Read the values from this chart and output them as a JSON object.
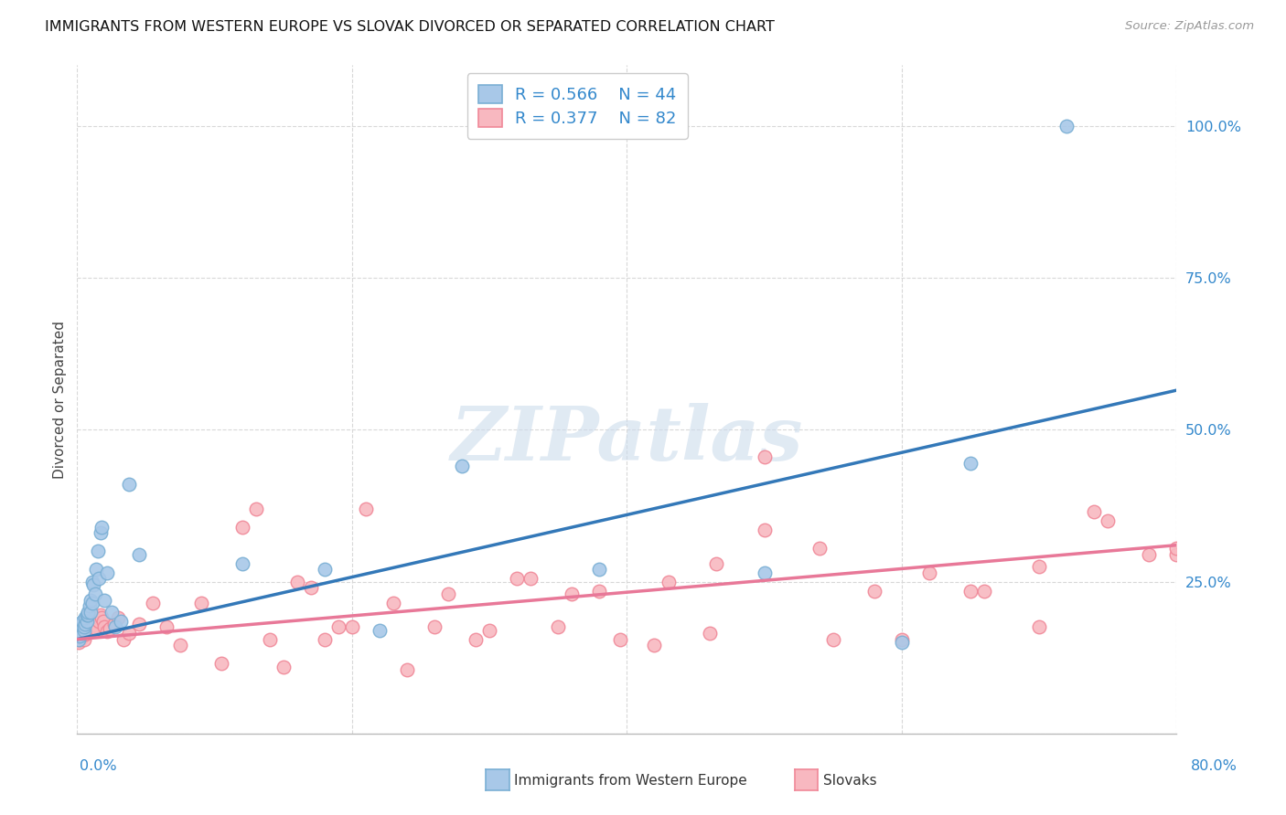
{
  "title": "IMMIGRANTS FROM WESTERN EUROPE VS SLOVAK DIVORCED OR SEPARATED CORRELATION CHART",
  "source": "Source: ZipAtlas.com",
  "ylabel": "Divorced or Separated",
  "legend_blue_r": "R = 0.566",
  "legend_blue_n": "N = 44",
  "legend_pink_r": "R = 0.377",
  "legend_pink_n": "N = 82",
  "blue_scatter_color": "#a8c8e8",
  "blue_edge_color": "#7aafd4",
  "pink_scatter_color": "#f8b8c0",
  "pink_edge_color": "#f08898",
  "line_blue": "#3378b8",
  "line_pink": "#e87898",
  "blue_scatter_x": [
    0.001,
    0.001,
    0.002,
    0.002,
    0.003,
    0.003,
    0.004,
    0.004,
    0.005,
    0.005,
    0.006,
    0.006,
    0.007,
    0.007,
    0.008,
    0.008,
    0.009,
    0.01,
    0.01,
    0.011,
    0.011,
    0.012,
    0.013,
    0.014,
    0.015,
    0.016,
    0.017,
    0.018,
    0.02,
    0.022,
    0.025,
    0.028,
    0.032,
    0.038,
    0.045,
    0.12,
    0.18,
    0.22,
    0.28,
    0.38,
    0.5,
    0.6,
    0.65,
    0.72
  ],
  "blue_scatter_y": [
    0.155,
    0.165,
    0.16,
    0.17,
    0.165,
    0.18,
    0.175,
    0.185,
    0.17,
    0.175,
    0.18,
    0.19,
    0.185,
    0.195,
    0.195,
    0.2,
    0.21,
    0.2,
    0.22,
    0.215,
    0.25,
    0.245,
    0.23,
    0.27,
    0.3,
    0.255,
    0.33,
    0.34,
    0.22,
    0.265,
    0.2,
    0.175,
    0.185,
    0.41,
    0.295,
    0.28,
    0.27,
    0.17,
    0.44,
    0.27,
    0.265,
    0.15,
    0.445,
    1.0
  ],
  "pink_scatter_x": [
    0.001,
    0.001,
    0.002,
    0.002,
    0.003,
    0.003,
    0.004,
    0.004,
    0.005,
    0.005,
    0.006,
    0.006,
    0.007,
    0.007,
    0.008,
    0.008,
    0.009,
    0.01,
    0.011,
    0.012,
    0.013,
    0.014,
    0.015,
    0.016,
    0.017,
    0.018,
    0.019,
    0.02,
    0.022,
    0.024,
    0.027,
    0.03,
    0.034,
    0.038,
    0.045,
    0.055,
    0.065,
    0.075,
    0.09,
    0.105,
    0.12,
    0.14,
    0.16,
    0.18,
    0.2,
    0.23,
    0.26,
    0.29,
    0.32,
    0.35,
    0.38,
    0.42,
    0.46,
    0.5,
    0.55,
    0.6,
    0.65,
    0.7,
    0.75,
    0.8,
    0.13,
    0.15,
    0.17,
    0.19,
    0.21,
    0.24,
    0.27,
    0.3,
    0.33,
    0.36,
    0.395,
    0.43,
    0.465,
    0.5,
    0.54,
    0.58,
    0.62,
    0.66,
    0.7,
    0.74,
    0.78,
    0.8
  ],
  "pink_scatter_y": [
    0.15,
    0.165,
    0.155,
    0.16,
    0.158,
    0.165,
    0.16,
    0.17,
    0.155,
    0.165,
    0.163,
    0.172,
    0.168,
    0.175,
    0.172,
    0.178,
    0.175,
    0.17,
    0.18,
    0.185,
    0.178,
    0.172,
    0.19,
    0.185,
    0.195,
    0.19,
    0.185,
    0.175,
    0.168,
    0.172,
    0.18,
    0.19,
    0.155,
    0.165,
    0.18,
    0.215,
    0.175,
    0.145,
    0.215,
    0.115,
    0.34,
    0.155,
    0.25,
    0.155,
    0.175,
    0.215,
    0.175,
    0.155,
    0.255,
    0.175,
    0.235,
    0.145,
    0.165,
    0.455,
    0.155,
    0.155,
    0.235,
    0.175,
    0.35,
    0.295,
    0.37,
    0.11,
    0.24,
    0.175,
    0.37,
    0.105,
    0.23,
    0.17,
    0.255,
    0.23,
    0.155,
    0.25,
    0.28,
    0.335,
    0.305,
    0.235,
    0.265,
    0.235,
    0.275,
    0.365,
    0.295,
    0.305
  ],
  "xmin": 0.0,
  "xmax": 0.8,
  "ymin": 0.0,
  "ymax": 1.1,
  "grid_color": "#d8d8d8",
  "background_color": "#ffffff",
  "watermark_text": "ZIPatlas",
  "watermark_color": "#ccdcec"
}
